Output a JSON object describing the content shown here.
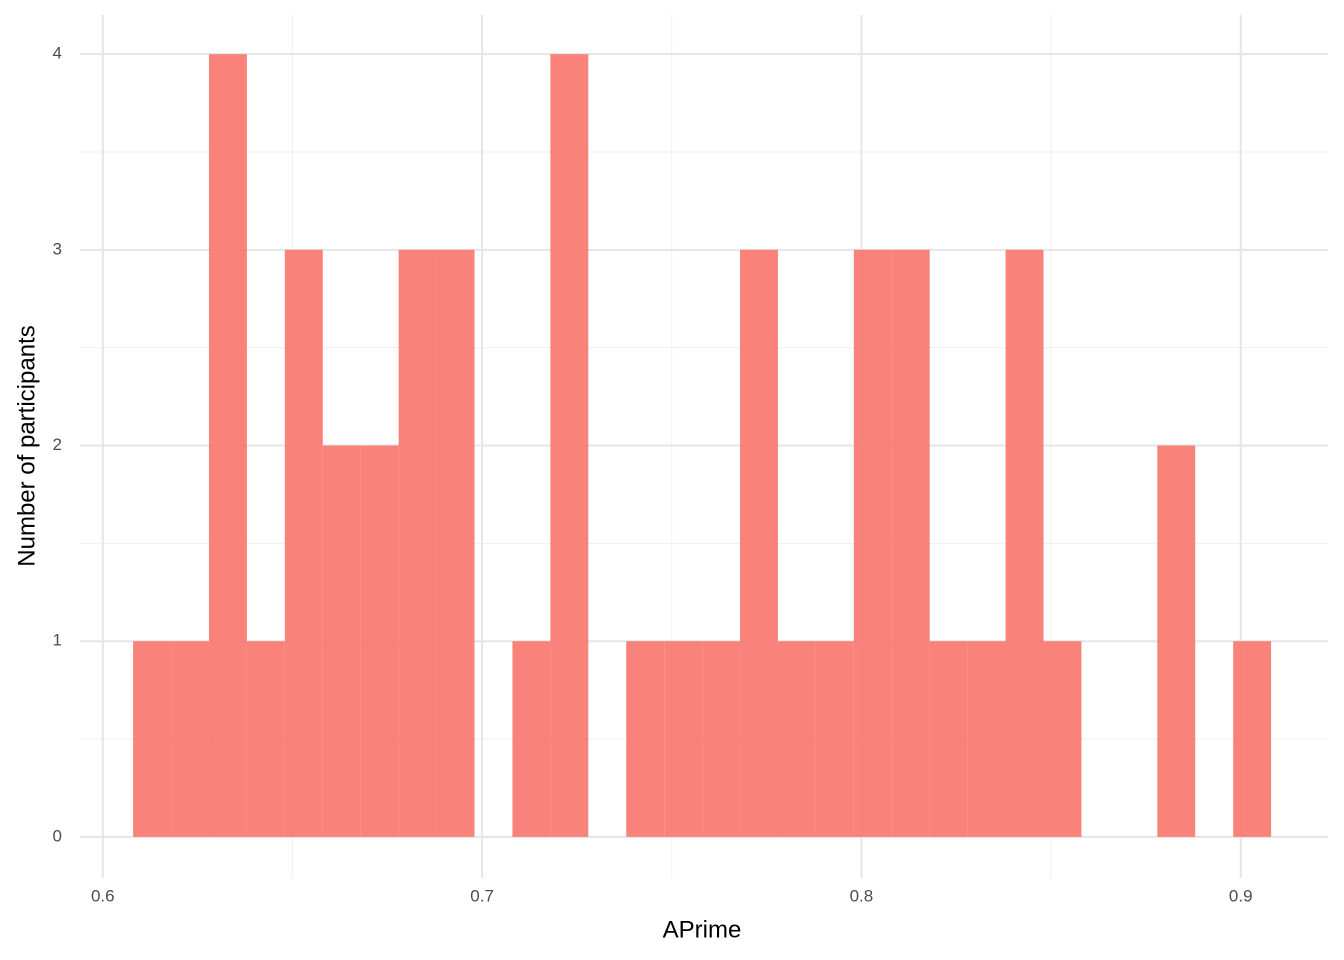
{
  "chart_data": {
    "type": "histogram",
    "x_label": "APrime",
    "y_label": "Number of participants",
    "bins": [
      0.608,
      0.618,
      0.628,
      0.638,
      0.648,
      0.658,
      0.668,
      0.678,
      0.688,
      0.698,
      0.708,
      0.718,
      0.728,
      0.738,
      0.748,
      0.758,
      0.768,
      0.778,
      0.788,
      0.798,
      0.808,
      0.818,
      0.828,
      0.838,
      0.848,
      0.858,
      0.868,
      0.878,
      0.888,
      0.898,
      0.908
    ],
    "values": [
      1,
      1,
      4,
      1,
      3,
      2,
      2,
      3,
      3,
      0,
      1,
      4,
      0,
      1,
      1,
      1,
      3,
      1,
      1,
      3,
      3,
      1,
      1,
      3,
      1,
      0,
      0,
      2,
      0,
      1
    ],
    "color": "#F8766D",
    "xlim": [
      0.594,
      0.923
    ],
    "ylim": [
      -0.21,
      4.2
    ],
    "xticks": [
      0.6,
      0.7,
      0.8,
      0.9
    ],
    "yticks": [
      0,
      1,
      2,
      3,
      4
    ],
    "grid": true
  }
}
